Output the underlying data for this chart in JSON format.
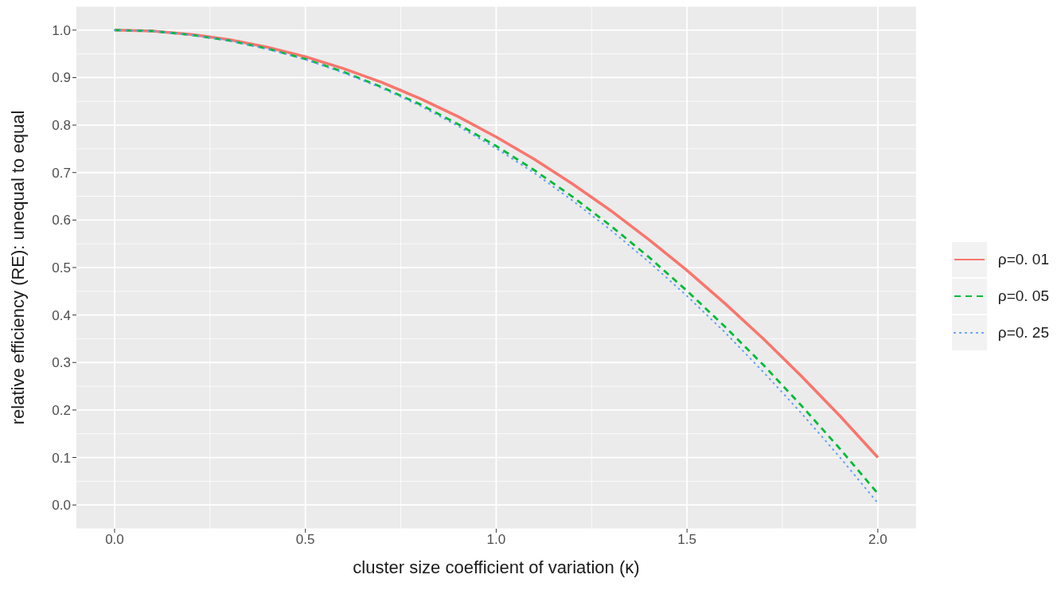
{
  "chart_data": {
    "type": "line",
    "xlabel": "cluster size coefficient of variation (κ)",
    "ylabel": "relative efficiency (RE): unequal to equal",
    "x": [
      0,
      0.1,
      0.2,
      0.3,
      0.4,
      0.5,
      0.6,
      0.7,
      0.8,
      0.9,
      1.0,
      1.1,
      1.2,
      1.3,
      1.4,
      1.5,
      1.6,
      1.7,
      1.8,
      1.9,
      2.0
    ],
    "series": [
      {
        "name": "ρ=0. 01",
        "color": "#f8766d",
        "line_style": "solid",
        "values": [
          1,
          0.998,
          0.991,
          0.98,
          0.964,
          0.944,
          0.919,
          0.89,
          0.856,
          0.818,
          0.775,
          0.728,
          0.676,
          0.62,
          0.559,
          0.494,
          0.424,
          0.35,
          0.271,
          0.188,
          0.1
        ]
      },
      {
        "name": "ρ=0. 05",
        "color": "#00ba38",
        "line_style": "dashed",
        "values": [
          1,
          0.998,
          0.99,
          0.978,
          0.961,
          0.939,
          0.912,
          0.88,
          0.844,
          0.802,
          0.756,
          0.705,
          0.649,
          0.588,
          0.522,
          0.451,
          0.375,
          0.295,
          0.209,
          0.119,
          0.024
        ]
      },
      {
        "name": "ρ=0. 25",
        "color": "#619cff",
        "line_style": "dotted",
        "values": [
          1,
          0.998,
          0.99,
          0.978,
          0.96,
          0.938,
          0.91,
          0.878,
          0.841,
          0.798,
          0.751,
          0.699,
          0.641,
          0.579,
          0.512,
          0.44,
          0.363,
          0.28,
          0.193,
          0.101,
          0.004
        ]
      }
    ],
    "xlim": [
      -0.1,
      2.1
    ],
    "xticks": [
      {
        "value": 0,
        "label": "0.0"
      },
      {
        "value": 0.5,
        "label": "0.5"
      },
      {
        "value": 1,
        "label": "1.0"
      },
      {
        "value": 1.5,
        "label": "1.5"
      },
      {
        "value": 2,
        "label": "2.0"
      }
    ],
    "ylim": [
      -0.05,
      1.05
    ],
    "yticks": [
      {
        "value": 0,
        "label": "0.0"
      },
      {
        "value": 0.1,
        "label": "0.1"
      },
      {
        "value": 0.2,
        "label": "0.2"
      },
      {
        "value": 0.3,
        "label": "0.3"
      },
      {
        "value": 0.4,
        "label": "0.4"
      },
      {
        "value": 0.5,
        "label": "0.5"
      },
      {
        "value": 0.6,
        "label": "0.6"
      },
      {
        "value": 0.7,
        "label": "0.7"
      },
      {
        "value": 0.8,
        "label": "0.8"
      },
      {
        "value": 0.9,
        "label": "0.9"
      },
      {
        "value": 1,
        "label": "1.0"
      }
    ],
    "grid": true,
    "legend": "right",
    "marker": "none"
  }
}
